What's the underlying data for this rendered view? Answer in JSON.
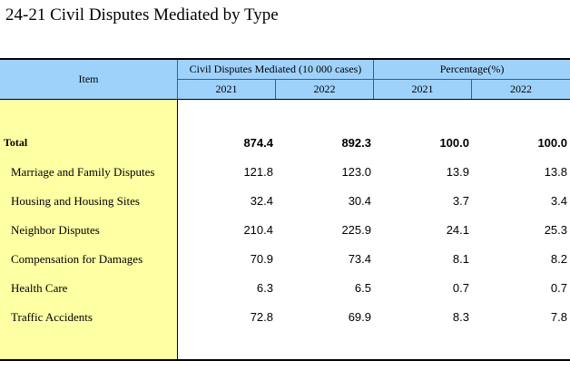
{
  "title": "24-21  Civil Disputes Mediated by Type",
  "header": {
    "item": "Item",
    "group1": "Civil Disputes Mediated (10 000 cases)",
    "group2": "Percentage(%)",
    "years": [
      "2021",
      "2022",
      "2021",
      "2022"
    ]
  },
  "rows": [
    {
      "label": "Total",
      "values": [
        "874.4",
        "892.3",
        "100.0",
        "100.0"
      ],
      "bold": true
    },
    {
      "label": "Marriage and Family Disputes",
      "values": [
        "121.8",
        "123.0",
        "13.9",
        "13.8"
      ]
    },
    {
      "label": "Housing and Housing Sites",
      "values": [
        "32.4",
        "30.4",
        "3.7",
        "3.4"
      ]
    },
    {
      "label": "Neighbor Disputes",
      "values": [
        "210.4",
        "225.9",
        "24.1",
        "25.3"
      ]
    },
    {
      "label": "Compensation for Damages",
      "values": [
        "70.9",
        "73.4",
        "8.1",
        "8.2"
      ]
    },
    {
      "label": "Health Care",
      "values": [
        "6.3",
        "6.5",
        "0.7",
        "0.7"
      ]
    },
    {
      "label": "Traffic Accidents",
      "values": [
        "72.8",
        "69.9",
        "8.3",
        "7.8"
      ]
    }
  ]
}
